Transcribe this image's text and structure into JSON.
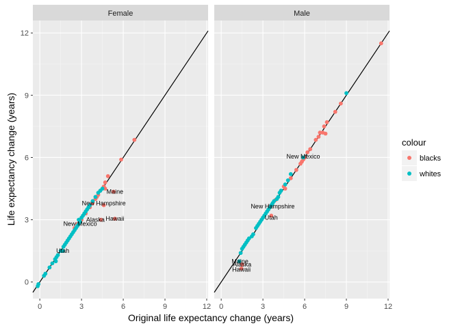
{
  "chart_data": {
    "type": "scatter",
    "xlabel": "Original life expectancy change (years)",
    "ylabel": "Life expectancy change (years)",
    "xlim": [
      -0.5,
      12.1
    ],
    "ylim": [
      -0.8,
      12.6
    ],
    "xticks": [
      0,
      3,
      6,
      9,
      12
    ],
    "yticks": [
      0,
      3,
      6,
      9,
      12
    ],
    "grid": true,
    "reference_line": {
      "slope": 1,
      "intercept": 0
    },
    "legend": {
      "title": "colour",
      "position": "right",
      "entries": [
        {
          "label": "blacks",
          "color": "#F8766D"
        },
        {
          "label": "whites",
          "color": "#00BFC4"
        }
      ]
    },
    "panels": [
      {
        "title": "Female",
        "series": [
          {
            "name": "blacks",
            "color": "#F8766D",
            "points": [
              [
                2.7,
                2.8
              ],
              [
                3.0,
                3.0
              ],
              [
                3.3,
                3.3
              ],
              [
                3.6,
                3.6
              ],
              [
                3.8,
                3.8
              ],
              [
                4.0,
                4.0
              ],
              [
                4.1,
                4.1
              ],
              [
                4.2,
                4.2
              ],
              [
                4.35,
                4.4
              ],
              [
                4.6,
                4.6
              ],
              [
                4.7,
                4.8
              ],
              [
                4.9,
                5.1
              ],
              [
                5.85,
                5.9
              ],
              [
                6.8,
                6.85
              ],
              [
                4.4,
                3.0
              ],
              [
                5.4,
                3.05
              ],
              [
                4.6,
                3.7
              ],
              [
                4.7,
                4.5
              ],
              [
                5.3,
                4.35
              ],
              [
                2.5,
                2.6
              ]
            ]
          },
          {
            "name": "whites",
            "color": "#00BFC4",
            "points": [
              [
                -0.15,
                -0.2
              ],
              [
                -0.1,
                -0.1
              ],
              [
                0.3,
                0.3
              ],
              [
                0.4,
                0.4
              ],
              [
                0.7,
                0.7
              ],
              [
                0.9,
                0.9
              ],
              [
                1.1,
                1.1
              ],
              [
                1.2,
                1.2
              ],
              [
                1.3,
                1.3
              ],
              [
                1.5,
                1.5
              ],
              [
                1.7,
                1.7
              ],
              [
                1.8,
                1.8
              ],
              [
                1.9,
                1.9
              ],
              [
                2.0,
                2.0
              ],
              [
                2.1,
                2.1
              ],
              [
                2.2,
                2.2
              ],
              [
                2.3,
                2.3
              ],
              [
                2.4,
                2.4
              ],
              [
                2.5,
                2.5
              ],
              [
                2.6,
                2.6
              ],
              [
                2.7,
                2.7
              ],
              [
                2.8,
                2.8
              ],
              [
                2.9,
                2.9
              ],
              [
                3.0,
                3.1
              ],
              [
                3.1,
                3.2
              ],
              [
                3.2,
                3.3
              ],
              [
                3.3,
                3.4
              ],
              [
                3.4,
                3.5
              ],
              [
                3.5,
                3.6
              ],
              [
                3.6,
                3.7
              ],
              [
                3.8,
                3.9
              ],
              [
                4.0,
                4.1
              ],
              [
                4.2,
                4.3
              ],
              [
                4.35,
                4.4
              ],
              [
                4.5,
                4.5
              ],
              [
                1.15,
                1.0
              ],
              [
                1.65,
                1.5
              ],
              [
                2.8,
                3.0
              ]
            ]
          }
        ],
        "labels": [
          {
            "text": "Maine",
            "x": 5.4,
            "y": 4.35
          },
          {
            "text": "New Hampshire",
            "x": 4.6,
            "y": 3.8
          },
          {
            "text": "Hawaii",
            "x": 5.4,
            "y": 3.05
          },
          {
            "text": "Alaska",
            "x": 4.0,
            "y": 3.0
          },
          {
            "text": "New Mexico",
            "x": 2.9,
            "y": 2.8
          },
          {
            "text": "Utah",
            "x": 1.65,
            "y": 1.5
          }
        ]
      },
      {
        "title": "Male",
        "series": [
          {
            "name": "blacks",
            "color": "#F8766D",
            "points": [
              [
                1.45,
                0.65
              ],
              [
                1.5,
                0.85
              ],
              [
                3.5,
                3.65
              ],
              [
                3.6,
                3.2
              ],
              [
                3.9,
                3.95
              ],
              [
                4.5,
                4.6
              ],
              [
                4.6,
                4.5
              ],
              [
                5.0,
                5.0
              ],
              [
                5.4,
                5.4
              ],
              [
                5.7,
                5.7
              ],
              [
                5.8,
                5.8
              ],
              [
                5.9,
                5.9
              ],
              [
                6.0,
                6.0
              ],
              [
                6.2,
                6.25
              ],
              [
                6.8,
                6.85
              ],
              [
                7.0,
                7.0
              ],
              [
                7.1,
                7.2
              ],
              [
                7.3,
                7.2
              ],
              [
                7.5,
                7.15
              ],
              [
                7.4,
                7.5
              ],
              [
                7.6,
                7.7
              ],
              [
                8.2,
                8.2
              ],
              [
                8.6,
                8.6
              ],
              [
                11.5,
                11.5
              ],
              [
                6.4,
                6.4
              ]
            ]
          },
          {
            "name": "whites",
            "color": "#00BFC4",
            "points": [
              [
                1.3,
                1.0
              ],
              [
                1.4,
                1.4
              ],
              [
                1.5,
                1.6
              ],
              [
                1.6,
                1.7
              ],
              [
                1.7,
                1.8
              ],
              [
                1.8,
                1.9
              ],
              [
                1.9,
                2.0
              ],
              [
                2.0,
                2.1
              ],
              [
                2.2,
                2.2
              ],
              [
                2.3,
                2.3
              ],
              [
                2.5,
                2.6
              ],
              [
                2.6,
                2.7
              ],
              [
                2.7,
                2.8
              ],
              [
                2.8,
                2.9
              ],
              [
                2.9,
                3.0
              ],
              [
                3.0,
                3.1
              ],
              [
                3.1,
                3.2
              ],
              [
                3.2,
                3.3
              ],
              [
                3.3,
                3.4
              ],
              [
                3.4,
                3.5
              ],
              [
                3.5,
                3.6
              ],
              [
                3.6,
                3.7
              ],
              [
                3.7,
                3.8
              ],
              [
                3.8,
                3.9
              ],
              [
                4.0,
                4.0
              ],
              [
                4.1,
                4.1
              ],
              [
                4.2,
                4.3
              ],
              [
                4.3,
                4.4
              ],
              [
                4.6,
                4.7
              ],
              [
                4.8,
                4.9
              ],
              [
                5.0,
                5.2
              ],
              [
                5.9,
                6.0
              ],
              [
                9.0,
                9.1
              ]
            ]
          }
        ],
        "labels": [
          {
            "text": "New Mexico",
            "x": 5.9,
            "y": 6.05
          },
          {
            "text": "New Hampshire",
            "x": 3.7,
            "y": 3.65
          },
          {
            "text": "Utah",
            "x": 3.6,
            "y": 3.1
          },
          {
            "text": "Maine",
            "x": 1.35,
            "y": 1.0
          },
          {
            "text": "Alaska",
            "x": 1.5,
            "y": 0.85
          },
          {
            "text": "Hawaii",
            "x": 1.45,
            "y": 0.6
          }
        ]
      }
    ]
  }
}
